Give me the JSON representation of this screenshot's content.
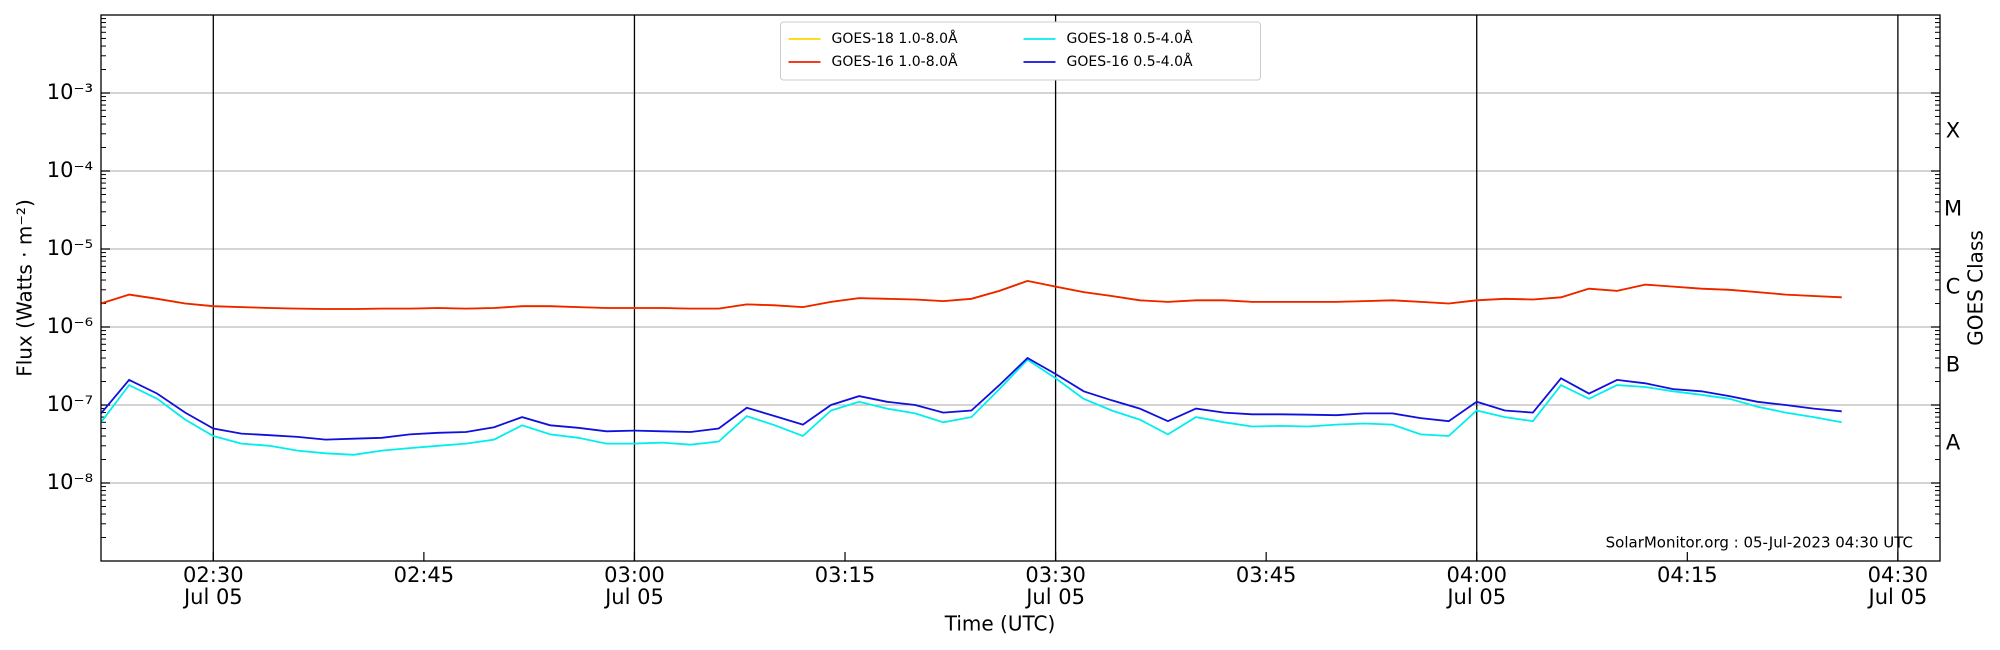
{
  "chart_data": {
    "type": "line",
    "title": null,
    "xlabel": "Time (UTC)",
    "ylabel": "Flux (Watts · m⁻²)",
    "y2label": "GOES Class",
    "annotation": "SolarMonitor.org : 05-Jul-2023 04:30 UTC",
    "log_y": true,
    "grid": true,
    "legend": "upper center",
    "legend_columns": 2,
    "xlim": [
      "02:22",
      "04:33"
    ],
    "xticks": [
      {
        "value": "02:30",
        "label": "02:30",
        "sublabel": "Jul 05"
      },
      {
        "value": "02:45",
        "label": "02:45"
      },
      {
        "value": "03:00",
        "label": "03:00",
        "sublabel": "Jul 05"
      },
      {
        "value": "03:15",
        "label": "03:15"
      },
      {
        "value": "03:30",
        "label": "03:30",
        "sublabel": "Jul 05"
      },
      {
        "value": "03:45",
        "label": "03:45"
      },
      {
        "value": "04:00",
        "label": "04:00",
        "sublabel": "Jul 05"
      },
      {
        "value": "04:15",
        "label": "04:15"
      },
      {
        "value": "04:30",
        "label": "04:30",
        "sublabel": "Jul 05"
      }
    ],
    "ylim": [
      1e-09,
      0.01
    ],
    "yticks": [
      {
        "value": 1e-08,
        "label": "10⁻⁸"
      },
      {
        "value": 1e-07,
        "label": "10⁻⁷"
      },
      {
        "value": 1e-06,
        "label": "10⁻⁶"
      },
      {
        "value": 1e-05,
        "label": "10⁻⁵"
      },
      {
        "value": 0.0001,
        "label": "10⁻⁴"
      },
      {
        "value": 0.001,
        "label": "10⁻³"
      }
    ],
    "y2lim": [
      1e-09,
      0.01
    ],
    "y2ticks": [
      {
        "value": 3.2e-08,
        "label": "A"
      },
      {
        "value": 3.2e-07,
        "label": "B"
      },
      {
        "value": 3.2e-06,
        "label": "C"
      },
      {
        "value": 3.2e-05,
        "label": "M"
      },
      {
        "value": 0.00032,
        "label": "X"
      }
    ],
    "x": [
      "02:22",
      "02:24",
      "02:26",
      "02:28",
      "02:30",
      "02:32",
      "02:34",
      "02:36",
      "02:38",
      "02:40",
      "02:42",
      "02:44",
      "02:46",
      "02:48",
      "02:50",
      "02:52",
      "02:54",
      "02:56",
      "02:58",
      "03:00",
      "03:02",
      "03:04",
      "03:06",
      "03:08",
      "03:10",
      "03:12",
      "03:14",
      "03:16",
      "03:18",
      "03:20",
      "03:22",
      "03:24",
      "03:26",
      "03:28",
      "03:30",
      "03:32",
      "03:34",
      "03:36",
      "03:38",
      "03:40",
      "03:42",
      "03:44",
      "03:46",
      "03:48",
      "03:50",
      "03:52",
      "03:54",
      "03:56",
      "03:58",
      "04:00",
      "04:02",
      "04:04",
      "04:06",
      "04:08",
      "04:10",
      "04:12",
      "04:14",
      "04:16",
      "04:18",
      "04:20",
      "04:22",
      "04:24",
      "04:26"
    ],
    "series": [
      {
        "name": "GOES-18 1.0-8.0Å",
        "color": "#ffd700",
        "values": [
          2e-06,
          2.6e-06,
          2.3e-06,
          2e-06,
          1.85e-06,
          1.8e-06,
          1.75e-06,
          1.72e-06,
          1.7e-06,
          1.7e-06,
          1.72e-06,
          1.72e-06,
          1.75e-06,
          1.72e-06,
          1.75e-06,
          1.85e-06,
          1.85e-06,
          1.8e-06,
          1.75e-06,
          1.75e-06,
          1.75e-06,
          1.72e-06,
          1.72e-06,
          1.95e-06,
          1.9e-06,
          1.8e-06,
          2.1e-06,
          2.35e-06,
          2.3e-06,
          2.25e-06,
          2.15e-06,
          2.3e-06,
          2.9e-06,
          3.9e-06,
          3.3e-06,
          2.8e-06,
          2.5e-06,
          2.2e-06,
          2.1e-06,
          2.2e-06,
          2.2e-06,
          2.1e-06,
          2.1e-06,
          2.1e-06,
          2.1e-06,
          2.15e-06,
          2.2e-06,
          2.1e-06,
          2e-06,
          2.2e-06,
          2.3e-06,
          2.25e-06,
          2.4e-06,
          3.1e-06,
          2.9e-06,
          3.5e-06,
          3.3e-06,
          3.1e-06,
          3e-06,
          2.8e-06,
          2.6e-06,
          2.5e-06,
          2.4e-06
        ]
      },
      {
        "name": "GOES-16 1.0-8.0Å",
        "color": "#ee2200",
        "values": [
          2e-06,
          2.6e-06,
          2.3e-06,
          2e-06,
          1.85e-06,
          1.8e-06,
          1.75e-06,
          1.72e-06,
          1.7e-06,
          1.7e-06,
          1.72e-06,
          1.72e-06,
          1.75e-06,
          1.72e-06,
          1.75e-06,
          1.85e-06,
          1.85e-06,
          1.8e-06,
          1.75e-06,
          1.75e-06,
          1.75e-06,
          1.72e-06,
          1.72e-06,
          1.95e-06,
          1.9e-06,
          1.8e-06,
          2.1e-06,
          2.35e-06,
          2.3e-06,
          2.25e-06,
          2.15e-06,
          2.3e-06,
          2.9e-06,
          3.9e-06,
          3.3e-06,
          2.8e-06,
          2.5e-06,
          2.2e-06,
          2.1e-06,
          2.2e-06,
          2.2e-06,
          2.1e-06,
          2.1e-06,
          2.1e-06,
          2.1e-06,
          2.15e-06,
          2.2e-06,
          2.1e-06,
          2e-06,
          2.2e-06,
          2.3e-06,
          2.25e-06,
          2.4e-06,
          3.1e-06,
          2.9e-06,
          3.5e-06,
          3.3e-06,
          3.1e-06,
          3e-06,
          2.8e-06,
          2.6e-06,
          2.5e-06,
          2.4e-06
        ]
      },
      {
        "name": "GOES-18 0.5-4.0Å",
        "color": "#00eeee",
        "values": [
          6e-08,
          1.8e-07,
          1.2e-07,
          6.5e-08,
          4e-08,
          3.2e-08,
          3e-08,
          2.6e-08,
          2.4e-08,
          2.3e-08,
          2.6e-08,
          2.8e-08,
          3e-08,
          3.2e-08,
          3.6e-08,
          5.5e-08,
          4.2e-08,
          3.8e-08,
          3.2e-08,
          3.2e-08,
          3.3e-08,
          3.1e-08,
          3.4e-08,
          7.2e-08,
          5.5e-08,
          4e-08,
          8.5e-08,
          1.1e-07,
          9e-08,
          7.8e-08,
          6e-08,
          7e-08,
          1.6e-07,
          3.8e-07,
          2.2e-07,
          1.2e-07,
          8.5e-08,
          6.5e-08,
          4.2e-08,
          7e-08,
          6e-08,
          5.3e-08,
          5.4e-08,
          5.3e-08,
          5.6e-08,
          5.8e-08,
          5.6e-08,
          4.2e-08,
          4e-08,
          8.5e-08,
          7e-08,
          6.2e-08,
          1.8e-07,
          1.2e-07,
          1.8e-07,
          1.7e-07,
          1.5e-07,
          1.35e-07,
          1.2e-07,
          9.5e-08,
          8e-08,
          7e-08,
          6e-08
        ]
      },
      {
        "name": "GOES-16 0.5-4.0Å",
        "color": "#1010dd",
        "values": [
          7.8e-08,
          2.1e-07,
          1.4e-07,
          8e-08,
          5e-08,
          4.3e-08,
          4.1e-08,
          3.9e-08,
          3.6e-08,
          3.7e-08,
          3.8e-08,
          4.2e-08,
          4.4e-08,
          4.5e-08,
          5.2e-08,
          7e-08,
          5.5e-08,
          5.1e-08,
          4.6e-08,
          4.7e-08,
          4.6e-08,
          4.5e-08,
          5e-08,
          9.2e-08,
          7.2e-08,
          5.6e-08,
          1e-07,
          1.3e-07,
          1.1e-07,
          1e-07,
          8e-08,
          8.5e-08,
          1.8e-07,
          4e-07,
          2.5e-07,
          1.5e-07,
          1.15e-07,
          9e-08,
          6.2e-08,
          9e-08,
          8e-08,
          7.6e-08,
          7.6e-08,
          7.5e-08,
          7.4e-08,
          7.8e-08,
          7.8e-08,
          6.8e-08,
          6.2e-08,
          1.1e-07,
          8.5e-08,
          8e-08,
          2.2e-07,
          1.4e-07,
          2.1e-07,
          1.9e-07,
          1.6e-07,
          1.5e-07,
          1.3e-07,
          1.1e-07,
          1e-07,
          9e-08,
          8.3e-08
        ]
      }
    ]
  }
}
